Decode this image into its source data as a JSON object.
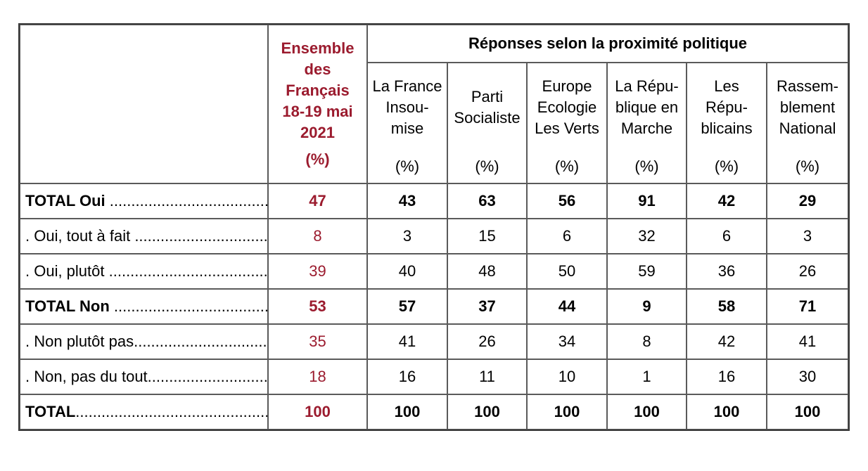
{
  "header": {
    "ensemble_lines": [
      "Ensemble",
      "des",
      "Français",
      "18-19 mai",
      "2021"
    ],
    "ensemble_unit": "(%)",
    "group_title": "Réponses selon la proximité politique",
    "parties": [
      {
        "lines": [
          "La France",
          "Insou-",
          "mise"
        ],
        "unit": "(%)"
      },
      {
        "lines": [
          "Parti",
          "Socialiste"
        ],
        "unit": "(%)"
      },
      {
        "lines": [
          "Europe",
          "Ecologie",
          "Les Verts"
        ],
        "unit": "(%)"
      },
      {
        "lines": [
          "La Répu-",
          "blique en",
          "Marche"
        ],
        "unit": "(%)"
      },
      {
        "lines": [
          "Les",
          "Répu-",
          "blicains"
        ],
        "unit": "(%)"
      },
      {
        "lines": [
          "Rassem-",
          "blement",
          "National"
        ],
        "unit": "(%)"
      }
    ]
  },
  "rows": [
    {
      "label": "TOTAL Oui ",
      "bold": true,
      "ensemble": "47",
      "values": [
        "43",
        "63",
        "56",
        "91",
        "42",
        "29"
      ]
    },
    {
      "label": ". Oui, tout à fait ",
      "bold": false,
      "ensemble": "8",
      "values": [
        "3",
        "15",
        "6",
        "32",
        "6",
        "3"
      ]
    },
    {
      "label": ". Oui, plutôt ",
      "bold": false,
      "ensemble": "39",
      "values": [
        "40",
        "48",
        "50",
        "59",
        "36",
        "26"
      ]
    },
    {
      "label": "TOTAL Non ",
      "bold": true,
      "ensemble": "53",
      "values": [
        "57",
        "37",
        "44",
        "9",
        "58",
        "71"
      ]
    },
    {
      "label": ". Non plutôt pas",
      "bold": false,
      "ensemble": "35",
      "values": [
        "41",
        "26",
        "34",
        "8",
        "42",
        "41"
      ]
    },
    {
      "label": ". Non, pas du tout",
      "bold": false,
      "ensemble": "18",
      "values": [
        "16",
        "11",
        "10",
        "1",
        "16",
        "30"
      ]
    },
    {
      "label": "TOTAL",
      "bold": true,
      "ensemble": "100",
      "values": [
        "100",
        "100",
        "100",
        "100",
        "100",
        "100"
      ]
    }
  ],
  "colors": {
    "ensemble_accent": "#9b1b2e",
    "border": "#3a3a3a"
  }
}
